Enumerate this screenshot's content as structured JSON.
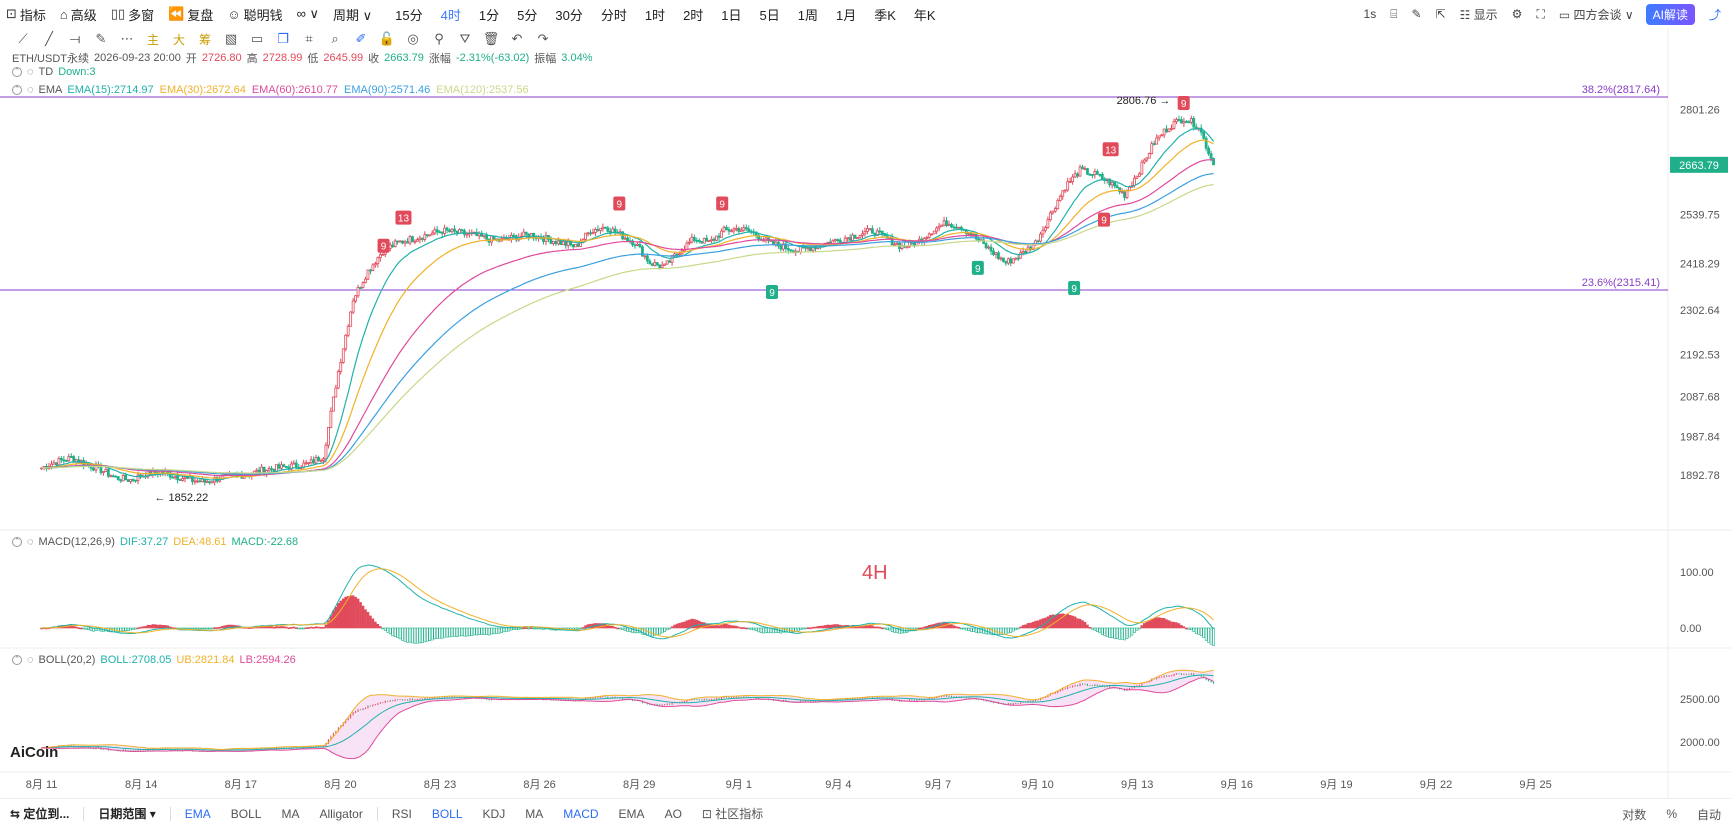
{
  "topbar": {
    "items": [
      {
        "icon": "indicator-icon",
        "glyph": "⊡",
        "label": "指标"
      },
      {
        "icon": "advanced-icon",
        "glyph": "⌂",
        "label": "高级"
      },
      {
        "icon": "multi-window-icon",
        "glyph": "▯▯",
        "label": "多窗"
      },
      {
        "icon": "replay-icon",
        "glyph": "⏪",
        "label": "复盘"
      },
      {
        "icon": "smart-money-icon",
        "glyph": "☺",
        "label": "聪明钱"
      }
    ],
    "chart_type_glyph": "∞ ∨",
    "period_label": "周期 ∨",
    "periods": [
      "15分",
      "4时",
      "1分",
      "5分",
      "30分",
      "分时",
      "1时",
      "2时",
      "1日",
      "5日",
      "1周",
      "1月",
      "季K",
      "年K"
    ],
    "active_period": "4时",
    "right": {
      "interval": "1s",
      "display": "显示",
      "exchange": "四方会谈 ∨",
      "ai_label": "AI解读"
    }
  },
  "drawbar": {
    "tools": [
      {
        "name": "line-tool-icon",
        "glyph": "⟋"
      },
      {
        "name": "ray-tool-icon",
        "glyph": "╱"
      },
      {
        "name": "hline-tool-icon",
        "glyph": "⟞"
      },
      {
        "name": "brush-tool-icon",
        "glyph": "✎"
      },
      {
        "name": "more-tool-icon",
        "glyph": "⋯"
      },
      {
        "name": "main-text-tool",
        "glyph": "主"
      },
      {
        "name": "large-text-tool",
        "glyph": "大"
      },
      {
        "name": "chip-text-tool",
        "glyph": "筹"
      },
      {
        "name": "fib-tool-icon",
        "glyph": "▧"
      },
      {
        "name": "rect-tool-icon",
        "glyph": "▭"
      },
      {
        "name": "copy-tool-icon",
        "glyph": "❐"
      },
      {
        "name": "ruler-tool-icon",
        "glyph": "⌗"
      },
      {
        "name": "zoom-tool-icon",
        "glyph": "⌕"
      },
      {
        "name": "pen-tool-icon",
        "glyph": "✐"
      },
      {
        "name": "lock-tool-icon",
        "glyph": "🔓"
      },
      {
        "name": "visible-tool-icon",
        "glyph": "◎"
      },
      {
        "name": "magnet-tool-icon",
        "glyph": "⚲"
      },
      {
        "name": "filter-tool-icon",
        "glyph": "⛛"
      },
      {
        "name": "delete-tool-icon",
        "glyph": "🗑"
      },
      {
        "name": "undo-tool-icon",
        "glyph": "↶"
      },
      {
        "name": "redo-tool-icon",
        "glyph": "↷"
      }
    ]
  },
  "header": {
    "symbol": "ETH/USDT永续",
    "datetime": "2026-09-23 20:00",
    "open_label": "开",
    "open": "2726.80",
    "high_label": "高",
    "high": "2728.99",
    "low_label": "低",
    "low": "2645.99",
    "close_label": "收",
    "close": "2663.79",
    "change_label": "涨幅",
    "change": "-2.31%(-63.02)",
    "amp_label": "振幅",
    "amp": "3.04%"
  },
  "td_indicator": {
    "name": "TD",
    "value": "Down:3"
  },
  "ema_indicator": {
    "name": "EMA",
    "lines": [
      {
        "label": "EMA(15):2714.97",
        "color": "#20b2aa"
      },
      {
        "label": "EMA(30):2672.64",
        "color": "#f0b22a"
      },
      {
        "label": "EMA(60):2610.77",
        "color": "#e04a9a"
      },
      {
        "label": "EMA(90):2571.46",
        "color": "#3aa0e0"
      },
      {
        "label": "EMA(120):2537.56",
        "color": "#c8d88a"
      }
    ]
  },
  "macd_indicator": {
    "name": "MACD(12,26,9)",
    "dif": "DIF:37.27",
    "dea": "DEA:48.61",
    "macd": "MACD:-22.68"
  },
  "boll_indicator": {
    "name": "BOLL(20,2)",
    "boll": "BOLL:2708.05",
    "ub": "UB:2821.84",
    "lb": "LB:2594.26"
  },
  "fib_levels": [
    {
      "label": "38.2%(2817.64)",
      "price": 2817.64
    },
    {
      "label": "23.6%(2315.41)",
      "price": 2315.41
    }
  ],
  "annotations": {
    "high_marker": "2806.76 →",
    "low_marker": "← 1852.22",
    "current_price": "2663.79",
    "timeframe_label": "4H",
    "watermark": "AiCoin",
    "td_marks": [
      {
        "text": "9",
        "type": "sell",
        "x_day": 11.3,
        "price": 2460
      },
      {
        "text": "13",
        "type": "sell",
        "x_day": 11.9,
        "price": 2530
      },
      {
        "text": "9",
        "type": "sell",
        "x_day": 18.4,
        "price": 2565
      },
      {
        "text": "9",
        "type": "sell",
        "x_day": 21.5,
        "price": 2565
      },
      {
        "text": "9",
        "type": "buy",
        "x_day": 23.0,
        "price": 2345
      },
      {
        "text": "9",
        "type": "buy",
        "x_day": 29.2,
        "price": 2405
      },
      {
        "text": "9",
        "type": "buy",
        "x_day": 32.1,
        "price": 2355
      },
      {
        "text": "9",
        "type": "sell",
        "x_day": 33.0,
        "price": 2525
      },
      {
        "text": "13",
        "type": "sell",
        "x_day": 33.2,
        "price": 2700
      },
      {
        "text": "9",
        "type": "sell",
        "x_day": 35.4,
        "price": 2815
      }
    ]
  },
  "price_axis": {
    "ticks": [
      "2801.26",
      "2539.75",
      "2418.29",
      "2302.64",
      "2192.53",
      "2087.68",
      "1987.84",
      "1892.78"
    ],
    "tick_values": [
      2801.26,
      2539.75,
      2418.29,
      2302.64,
      2192.53,
      2087.68,
      1987.84,
      1892.78
    ],
    "macd_ticks": [
      "100.00",
      "0.00"
    ],
    "boll_ticks": [
      "2500.00",
      "2000.00"
    ]
  },
  "date_axis": {
    "labels": [
      "8月 11",
      "8月 14",
      "8月 17",
      "8月 20",
      "8月 23",
      "8月 26",
      "8月 29",
      "9月 1",
      "9月 4",
      "9月 7",
      "9月 10",
      "9月 13",
      "9月 16",
      "9月 19",
      "9月 22",
      "9月 25"
    ],
    "label_days": [
      1,
      4,
      7,
      10,
      13,
      16,
      19,
      22,
      25,
      28,
      31,
      34,
      37,
      40,
      43,
      46
    ]
  },
  "chart_data": {
    "type": "candlestick",
    "x_unit": "days after 8月 10",
    "closes": [
      1910,
      1925,
      1935,
      1920,
      1905,
      1885,
      1880,
      1895,
      1900,
      1890,
      1880,
      1875,
      1885,
      1890,
      1895,
      1905,
      1910,
      1915,
      1920,
      1940,
      2150,
      2330,
      2400,
      2450,
      2470,
      2480,
      2490,
      2500,
      2495,
      2490,
      2480,
      2475,
      2485,
      2490,
      2480,
      2470,
      2460,
      2500,
      2510,
      2490,
      2470,
      2420,
      2410,
      2450,
      2480,
      2470,
      2500,
      2505,
      2495,
      2470,
      2460,
      2450,
      2460,
      2470,
      2480,
      2490,
      2500,
      2480,
      2460,
      2470,
      2500,
      2520,
      2510,
      2480,
      2450,
      2420,
      2440,
      2470,
      2540,
      2610,
      2650,
      2640,
      2620,
      2590,
      2650,
      2720,
      2760,
      2780,
      2760,
      2663.79
    ],
    "ema_values": {
      "EMA(15)": 2714.97,
      "EMA(30)": 2672.64,
      "EMA(60)": 2610.77,
      "EMA(90)": 2571.46,
      "EMA(120)": 2537.56
    },
    "macd": {
      "DIF": 37.27,
      "DEA": 48.61,
      "MACD": -22.68
    },
    "boll": {
      "BOLL": 2708.05,
      "UB": 2821.84,
      "LB": 2594.26
    },
    "price_range": [
      1830,
      2835
    ],
    "colors": {
      "up": "#e04a5a",
      "down": "#1fb08a",
      "fib": "#8a3ec8"
    }
  },
  "bottombar": {
    "locate": "定位到...",
    "date_range": "日期范围 ▾",
    "main_inds": [
      "EMA",
      "BOLL",
      "MA",
      "Alligator"
    ],
    "sub_inds": [
      "RSI",
      "BOLL",
      "KDJ",
      "MA",
      "MACD",
      "EMA",
      "AO"
    ],
    "community": "社区指标",
    "right": [
      "对数",
      "%",
      "自动"
    ]
  }
}
